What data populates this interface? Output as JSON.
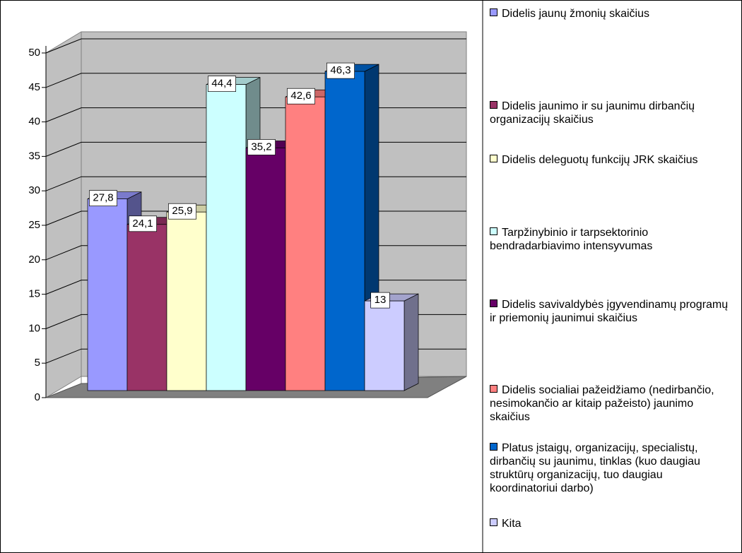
{
  "chart_data": {
    "type": "bar3d",
    "ylim": [
      0,
      50
    ],
    "yticks": [
      0,
      5,
      10,
      15,
      20,
      25,
      30,
      35,
      40,
      45,
      50
    ],
    "grid": true,
    "legend": "right",
    "series": [
      {
        "name": "Didelis jaunų žmonių skaičius",
        "color": "#9999ff",
        "values": [
          27.8
        ],
        "value_labels": [
          "27,8"
        ]
      },
      {
        "name": "Didelis jaunimo ir su jaunimu dirbančių organizacijų skaičius",
        "color": "#993366",
        "values": [
          24.1
        ],
        "value_labels": [
          "24,1"
        ]
      },
      {
        "name": "Didelis deleguotų funkcijų JRK skaičius",
        "color": "#ffffcc",
        "values": [
          25.9
        ],
        "value_labels": [
          "25,9"
        ]
      },
      {
        "name": "Tarpžinybinio ir tarpsektorinio bendradarbiavimo intensyvumas",
        "color": "#ccffff",
        "values": [
          44.4
        ],
        "value_labels": [
          "44,4"
        ]
      },
      {
        "name": "Didelis savivaldybės įgyvendinamų programų ir priemonių jaunimui skaičius",
        "color": "#660066",
        "values": [
          35.2
        ],
        "value_labels": [
          "35,2"
        ]
      },
      {
        "name": "Didelis socialiai pažeidžiamo (nedirbančio, nesimokančio ar kitaip pažeisto) jaunimo skaičius",
        "color": "#ff8080",
        "values": [
          42.6
        ],
        "value_labels": [
          "42,6"
        ]
      },
      {
        "name": "Platus įstaigų, organizacijų, specialistų, dirbančių su jaunimu, tinklas (kuo daugiau struktūrų organizacijų, tuo daugiau koordinatoriui darbo)",
        "color": "#0066cc",
        "values": [
          46.3
        ],
        "value_labels": [
          "46,3"
        ]
      },
      {
        "name": "Kita",
        "color": "#ccccff",
        "values": [
          13
        ],
        "value_labels": [
          "13"
        ]
      }
    ]
  }
}
